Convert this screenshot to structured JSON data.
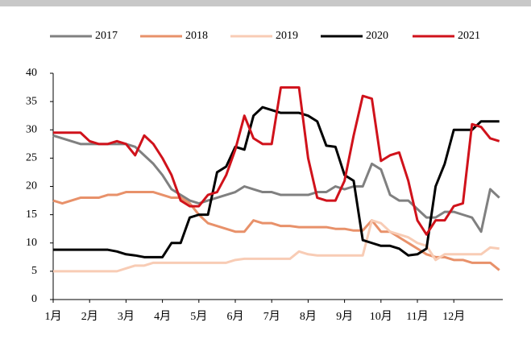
{
  "chart_data": {
    "type": "line",
    "categories": [
      "1月",
      null,
      null,
      null,
      "2月",
      null,
      null,
      null,
      "3月",
      null,
      null,
      null,
      "4月",
      null,
      null,
      null,
      "5月",
      null,
      null,
      null,
      "6月",
      null,
      null,
      null,
      "7月",
      null,
      null,
      null,
      "8月",
      null,
      null,
      null,
      "9月",
      null,
      null,
      null,
      "10月",
      null,
      null,
      null,
      "11月",
      null,
      null,
      null,
      "12月",
      null,
      null,
      null,
      null,
      null
    ],
    "series": [
      {
        "name": "2017",
        "color": "#808080",
        "values": [
          29,
          28.5,
          28,
          27.5,
          27.5,
          27.5,
          27.5,
          27.5,
          27.5,
          27,
          25.5,
          24,
          22,
          19.5,
          18.5,
          17.5,
          17,
          17.5,
          18,
          18.5,
          19,
          20,
          19.5,
          19,
          19,
          18.5,
          18.5,
          18.5,
          18.5,
          19,
          19,
          20,
          19.5,
          20,
          20,
          24,
          23,
          18.5,
          17.5,
          17.5,
          16,
          14.5,
          14.5,
          15.5,
          15.5,
          15,
          14.5,
          12,
          19.5,
          18
        ]
      },
      {
        "name": "2018",
        "color": "#e8916a",
        "values": [
          17.5,
          17,
          17.5,
          18,
          18,
          18,
          18.5,
          18.5,
          19,
          19,
          19,
          19,
          18.5,
          18,
          18,
          17,
          15,
          13.5,
          13,
          12.5,
          12,
          12,
          14,
          13.5,
          13.5,
          13,
          13,
          12.8,
          12.8,
          12.8,
          12.8,
          12.5,
          12.5,
          12.2,
          12.2,
          14,
          12,
          12,
          11,
          10,
          9,
          8,
          7.5,
          7.5,
          7,
          7,
          6.5,
          6.5,
          6.5,
          5.2
        ]
      },
      {
        "name": "2019",
        "color": "#f8ccb5",
        "values": [
          5,
          5,
          5,
          5,
          5,
          5,
          5,
          5,
          5.5,
          6,
          6,
          6.5,
          6.5,
          6.5,
          6.5,
          6.5,
          6.5,
          6.5,
          6.5,
          6.5,
          7,
          7.2,
          7.2,
          7.2,
          7.2,
          7.2,
          7.2,
          8.5,
          8,
          7.8,
          7.8,
          7.8,
          7.8,
          7.8,
          7.8,
          14,
          13.5,
          12,
          11.5,
          11,
          10,
          9.5,
          7,
          8,
          8,
          8,
          8,
          8,
          9.2,
          9
        ]
      },
      {
        "name": "2020",
        "color": "#000000",
        "values": [
          8.8,
          8.8,
          8.8,
          8.8,
          8.8,
          8.8,
          8.8,
          8.5,
          8,
          7.8,
          7.5,
          7.5,
          7.5,
          10,
          10,
          14.5,
          15,
          15,
          22.5,
          23.5,
          27,
          26.5,
          32.5,
          34,
          33.5,
          33,
          33,
          33,
          32.5,
          31.5,
          27.2,
          27,
          22,
          21,
          10.5,
          10,
          9.5,
          9.5,
          9,
          7.8,
          8,
          9,
          20,
          24,
          30,
          30,
          30,
          31.5,
          31.5,
          31.5
        ]
      },
      {
        "name": "2021",
        "color": "#d0121b",
        "values": [
          29.5,
          29.5,
          29.5,
          29.5,
          28,
          27.5,
          27.5,
          28,
          27.5,
          25.5,
          29,
          27.5,
          25,
          22,
          17.5,
          16.5,
          16.5,
          18.5,
          19,
          22,
          26.5,
          32.5,
          28.5,
          27.5,
          27.5,
          37.5,
          37.5,
          37.5,
          25,
          18,
          17.5,
          17.5,
          21,
          29,
          36,
          35.5,
          24.5,
          25.5,
          26,
          21,
          14,
          11.5,
          14,
          14,
          16.5,
          17,
          31,
          30.5,
          28.5,
          28
        ]
      }
    ],
    "ylim": [
      0,
      40
    ],
    "yticks": [
      0,
      5,
      10,
      15,
      20,
      25,
      30,
      35,
      40
    ]
  }
}
